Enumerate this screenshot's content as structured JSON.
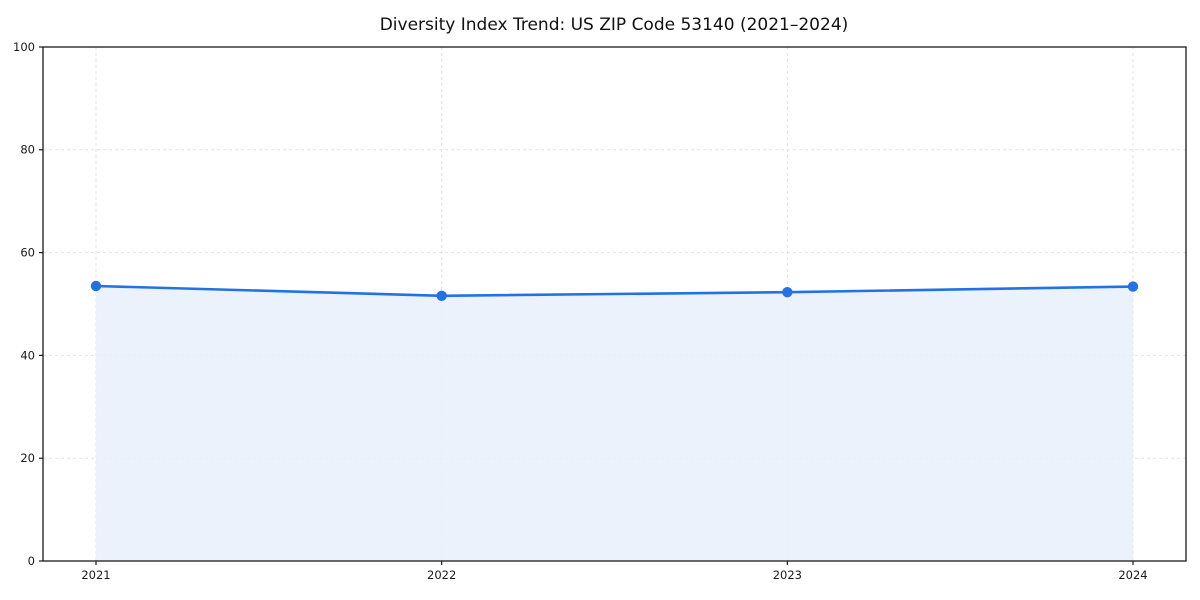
{
  "chart_data": {
    "type": "line",
    "subtype": "area-filled-line-with-markers",
    "title": "Diversity Index Trend: US ZIP Code 53140 (2021–2024)",
    "x": [
      "2021",
      "2022",
      "2023",
      "2024"
    ],
    "series": [
      {
        "name": "Diversity Index",
        "values": [
          53.5,
          51.6,
          52.3,
          53.4
        ]
      }
    ],
    "xlabel": "",
    "ylabel": "",
    "ylim": [
      0,
      100
    ],
    "yticks": [
      0,
      20,
      40,
      60,
      80,
      100
    ],
    "grid": "dashed",
    "grid_on": true,
    "legend": "none",
    "colors": {
      "line": "#2272e6",
      "marker": "#2272e6",
      "area_fill": "#e8f0fc",
      "grid": "#e2e2e2",
      "axis": "#1a1a1a",
      "text": "#111111",
      "background": "#ffffff"
    }
  }
}
